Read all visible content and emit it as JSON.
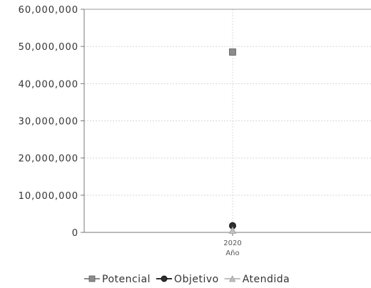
{
  "chart_data": {
    "type": "scatter",
    "title": "",
    "xlabel": "Año",
    "ylabel": "",
    "x": [
      "2020"
    ],
    "ylim": [
      0,
      60000000
    ],
    "yticks": [
      0,
      10000000,
      20000000,
      30000000,
      40000000,
      50000000,
      60000000
    ],
    "ytick_labels": [
      "0",
      "10,000,000",
      "20,000,000",
      "30,000,000",
      "40,000,000",
      "50,000,000",
      "60,000,000"
    ],
    "grid": true,
    "legend_position": "bottom",
    "series": [
      {
        "name": "Potencial",
        "values": [
          48500000
        ],
        "color": "#8c8c8c",
        "marker": "square"
      },
      {
        "name": "Objetivo",
        "values": [
          1800000
        ],
        "color": "#2f2f2f",
        "marker": "circle"
      },
      {
        "name": "Atendida",
        "values": [
          600000
        ],
        "color": "#bfbfbf",
        "marker": "triangle"
      }
    ]
  }
}
